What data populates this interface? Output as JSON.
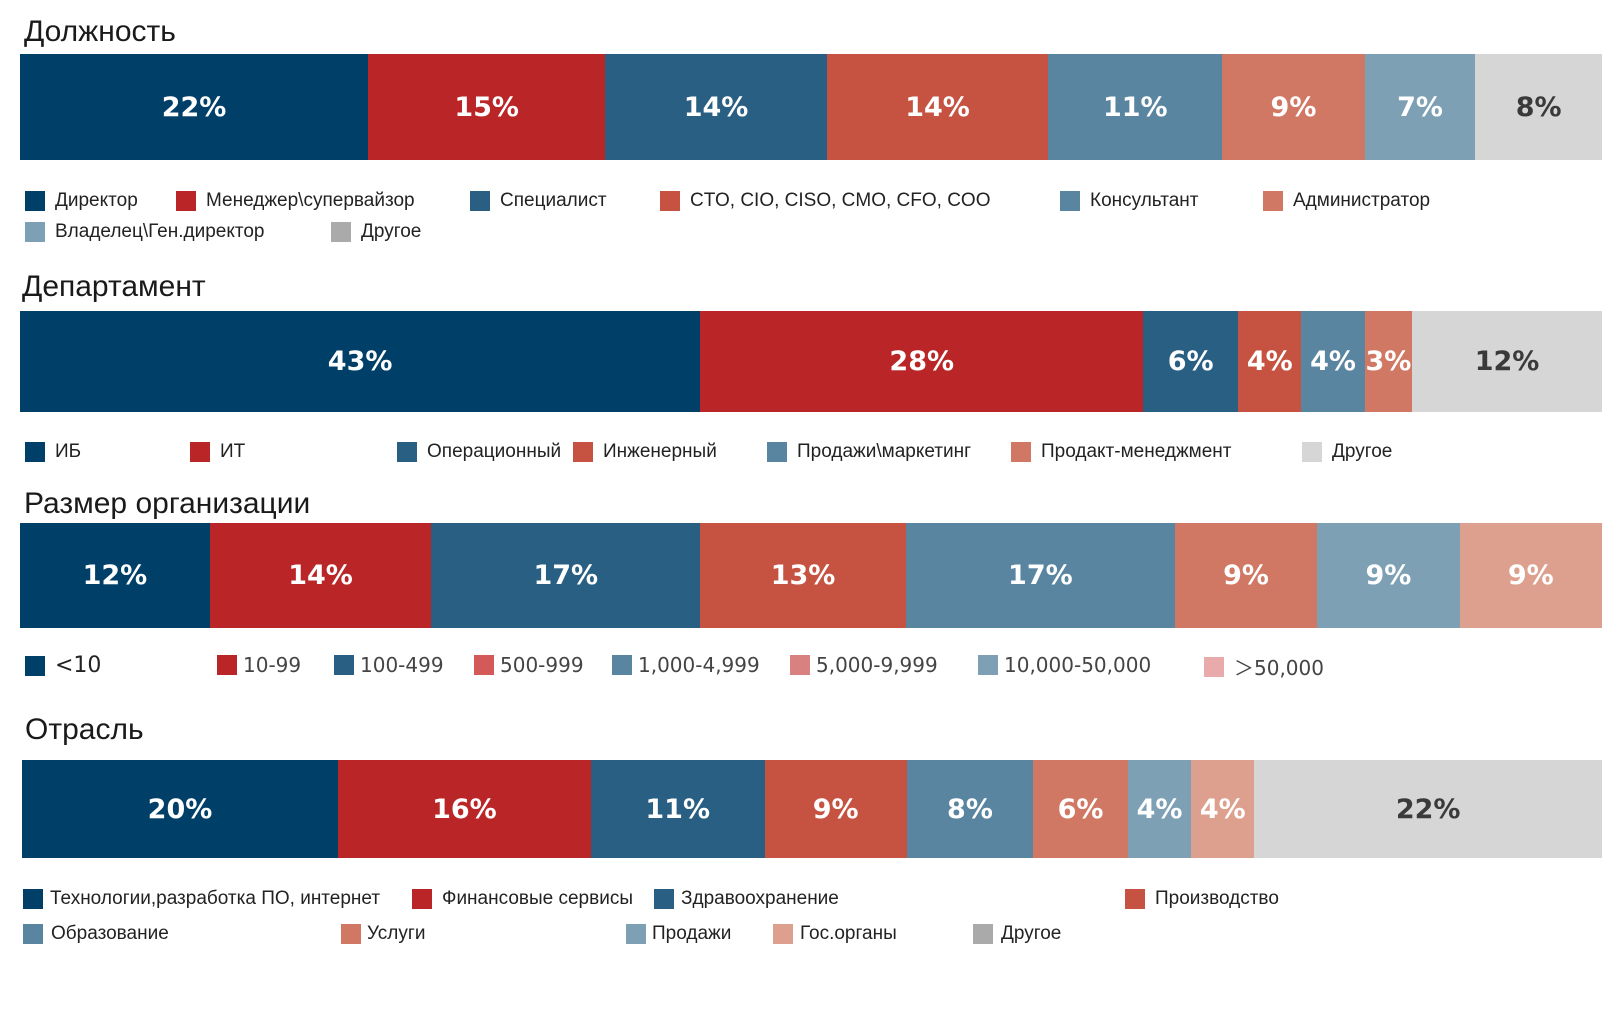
{
  "colors": {
    "navy": "#003f68",
    "red": "#ba2527",
    "blue2": "#295f82",
    "red2": "#c65342",
    "steel": "#5985a0",
    "salmon": "#d07863",
    "lightsteel": "#7ea0b5",
    "peach": "#dea08e",
    "lightgrey": "#d6d6d6",
    "grey": "#aaaaaa"
  },
  "chart_data": [
    {
      "type": "bar",
      "stacked": "100% horizontal",
      "title": "Должность",
      "series": [
        {
          "name": "Директор",
          "value": 22,
          "label": "22%",
          "color": "#003f68",
          "legend_color": "#003f68"
        },
        {
          "name": "Менеджер\\супервайзор",
          "value": 15,
          "label": "15%",
          "color": "#ba2527",
          "legend_color": "#ba2527"
        },
        {
          "name": "Специалист",
          "value": 14,
          "label": "14%",
          "color": "#295f82",
          "legend_color": "#295f82"
        },
        {
          "name": "CTO, CIO, CISO, CMO, CFO, COO",
          "value": 14,
          "label": "14%",
          "color": "#c65342",
          "legend_color": "#c65342"
        },
        {
          "name": "Консультант",
          "value": 11,
          "label": "11%",
          "color": "#5985a0",
          "legend_color": "#5985a0"
        },
        {
          "name": "Администратор",
          "value": 9,
          "label": "9%",
          "color": "#d07863",
          "legend_color": "#d07863"
        },
        {
          "name": "Владелец\\Ген.директор",
          "value": 7,
          "label": "7%",
          "color": "#7ea0b5",
          "legend_color": "#7ea0b5"
        },
        {
          "name": "Другое",
          "value": 8,
          "label": "8%",
          "color": "#d6d6d6",
          "legend_color": "#aaaaaa"
        }
      ]
    },
    {
      "type": "bar",
      "stacked": "100% horizontal",
      "title": "Департамент",
      "series": [
        {
          "name": "ИБ",
          "value": 43,
          "label": "43%",
          "color": "#003f68",
          "legend_color": "#003f68"
        },
        {
          "name": "ИТ",
          "value": 28,
          "label": "28%",
          "color": "#ba2527",
          "legend_color": "#ba2527"
        },
        {
          "name": "Операционный",
          "value": 6,
          "label": "6%",
          "color": "#295f82",
          "legend_color": "#295f82"
        },
        {
          "name": "Инженерный",
          "value": 4,
          "label": "4%",
          "color": "#c65342",
          "legend_color": "#c65342"
        },
        {
          "name": "Продажи\\маркетинг",
          "value": 4,
          "label": "4%",
          "color": "#5985a0",
          "legend_color": "#5985a0"
        },
        {
          "name": "Продакт-менеджмент",
          "value": 3,
          "label": "3%",
          "color": "#d07863",
          "legend_color": "#d07863"
        },
        {
          "name": "Другое",
          "value": 12,
          "label": "12%",
          "color": "#d6d6d6",
          "legend_color": "#d6d6d6"
        }
      ]
    },
    {
      "type": "bar",
      "stacked": "100% horizontal",
      "title": "Размер организации",
      "series": [
        {
          "name": "<10",
          "value": 12,
          "label": "12%",
          "color": "#003f68",
          "legend_color": "#003f68"
        },
        {
          "name": "10-99",
          "value": 14,
          "label": "14%",
          "color": "#ba2527",
          "legend_color": "#ba2527"
        },
        {
          "name": "100-499",
          "value": 17,
          "label": "17%",
          "color": "#295f82",
          "legend_color": "#295f82"
        },
        {
          "name": "500-999",
          "value": 13,
          "label": "13%",
          "color": "#c65342",
          "legend_color": "#d45a5a"
        },
        {
          "name": "1,000-4,999",
          "value": 17,
          "label": "17%",
          "color": "#5985a0",
          "legend_color": "#5985a0"
        },
        {
          "name": "5,000-9,999",
          "value": 9,
          "label": "9%",
          "color": "#d07863",
          "legend_color": "#d98080"
        },
        {
          "name": "10,000-50,000",
          "value": 9,
          "label": "9%",
          "color": "#7ea0b5",
          "legend_color": "#7ea0b5"
        },
        {
          "name": "＞50,000",
          "value": 9,
          "label": "9%",
          "color": "#dea08e",
          "legend_color": "#e8aaaa"
        }
      ]
    },
    {
      "type": "bar",
      "stacked": "100% horizontal",
      "title": "Отрасль",
      "series": [
        {
          "name": "Технологии,разработка ПО, интернет",
          "value": 20,
          "label": "20%",
          "color": "#003f68",
          "legend_color": "#003f68"
        },
        {
          "name": "Финансовые сервисы",
          "value": 16,
          "label": "16%",
          "color": "#ba2527",
          "legend_color": "#ba2527"
        },
        {
          "name": "Здравоохранение",
          "value": 11,
          "label": "11%",
          "color": "#295f82",
          "legend_color": "#295f82"
        },
        {
          "name": "Производство",
          "value": 9,
          "label": "9%",
          "color": "#c65342",
          "legend_color": "#c65342"
        },
        {
          "name": "Образование",
          "value": 8,
          "label": "8%",
          "color": "#5985a0",
          "legend_color": "#5985a0"
        },
        {
          "name": "Услуги",
          "value": 6,
          "label": "6%",
          "color": "#d07863",
          "legend_color": "#d07863"
        },
        {
          "name": "Продажи",
          "value": 4,
          "label": "4%",
          "color": "#7ea0b5",
          "legend_color": "#7ea0b5"
        },
        {
          "name": "Гос.органы",
          "value": 4,
          "label": "4%",
          "color": "#dea08e",
          "legend_color": "#dea08e"
        },
        {
          "name": "Другое",
          "value": 22,
          "label": "22%",
          "color": "#d6d6d6",
          "legend_color": "#aaaaaa"
        }
      ]
    }
  ]
}
